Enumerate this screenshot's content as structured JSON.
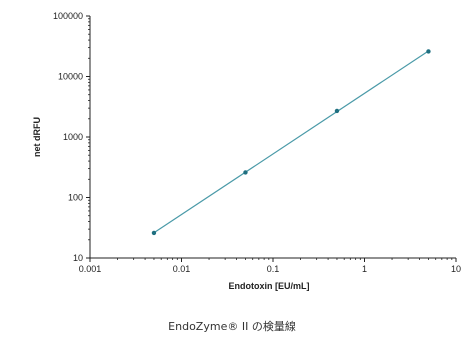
{
  "chart_data": {
    "type": "scatter",
    "xlabel": "Endotoxin [EU/mL]",
    "ylabel": "net dRFU",
    "xscale": "log",
    "yscale": "log",
    "xlim": [
      0.001,
      10
    ],
    "ylim": [
      10,
      100000
    ],
    "grid": false,
    "x_ticks": [
      "0.001",
      "0.01",
      "0.1",
      "1",
      "10"
    ],
    "y_ticks": [
      "10",
      "100",
      "1000",
      "10000",
      "100000"
    ],
    "series": [
      {
        "points": [
          {
            "x": 0.005,
            "y": 26
          },
          {
            "x": 0.05,
            "y": 260
          },
          {
            "x": 0.5,
            "y": 2700
          },
          {
            "x": 5,
            "y": 26000
          }
        ],
        "fit_line": {
          "x_from": 0.005,
          "x_to": 5
        }
      }
    ],
    "colors": {
      "line": "#4a9aa8",
      "marker": "#1f6f80",
      "axis": "#222222"
    }
  },
  "caption": "EndoZyme® II の検量線"
}
